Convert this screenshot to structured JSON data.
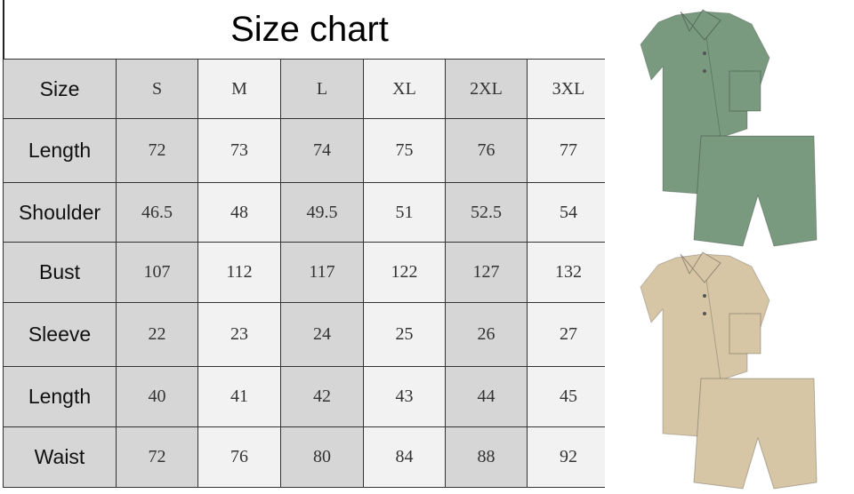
{
  "title": "Size chart",
  "header": {
    "label": "Size",
    "sizes": [
      "S",
      "M",
      "L",
      "XL",
      "2XL",
      "3XL"
    ]
  },
  "rows": [
    {
      "label": "Length",
      "values": [
        "72",
        "73",
        "74",
        "75",
        "76",
        "77"
      ]
    },
    {
      "label": "Shoulder",
      "values": [
        "46.5",
        "48",
        "49.5",
        "51",
        "52.5",
        "54"
      ]
    },
    {
      "label": "Bust",
      "values": [
        "107",
        "112",
        "117",
        "122",
        "127",
        "132"
      ]
    },
    {
      "label": "Sleeve",
      "values": [
        "22",
        "23",
        "24",
        "25",
        "26",
        "27"
      ]
    },
    {
      "label": "Length",
      "values": [
        "40",
        "41",
        "42",
        "43",
        "44",
        "45"
      ]
    },
    {
      "label": "Waist",
      "values": [
        "72",
        "76",
        "80",
        "84",
        "88",
        "92"
      ]
    }
  ],
  "products": [
    {
      "color": "#7a9a80"
    },
    {
      "color": "#d6c6a6"
    }
  ],
  "cell_colors": {
    "dark": "#d6d6d6",
    "light": "#f2f2f2"
  }
}
